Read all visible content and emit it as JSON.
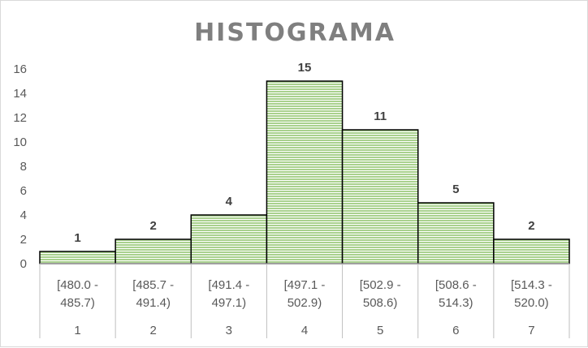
{
  "chart_data": {
    "type": "bar",
    "title": "HISTOGRAMA",
    "xlabel": "",
    "ylabel": "",
    "ylim": [
      0,
      16
    ],
    "yticks": [
      0,
      2,
      4,
      6,
      8,
      10,
      12,
      14,
      16
    ],
    "grid": false,
    "legend": "none",
    "categories": [
      [
        "[480.0 -",
        "485.7)"
      ],
      [
        "[485.7 -",
        "491.4)"
      ],
      [
        "[491.4 -",
        "497.1)"
      ],
      [
        "[497.1 -",
        "502.9)"
      ],
      [
        "[502.9 -",
        "508.6)"
      ],
      [
        "[508.6 -",
        "514.3)"
      ],
      [
        "[514.3 -",
        "520.0)"
      ]
    ],
    "category_index": [
      "1",
      "2",
      "3",
      "4",
      "5",
      "6",
      "7"
    ],
    "values": [
      1,
      2,
      4,
      15,
      11,
      5,
      2
    ],
    "data_labels": [
      "1",
      "2",
      "4",
      "15",
      "11",
      "5",
      "2"
    ],
    "colors": {
      "bar_fill": "#a9d18e",
      "bar_stripe": "#ffffff",
      "bar_stroke": "#000000",
      "title": "#7f7f7f",
      "axis_text": "#595959",
      "axis_line": "#bfbfbf"
    }
  }
}
